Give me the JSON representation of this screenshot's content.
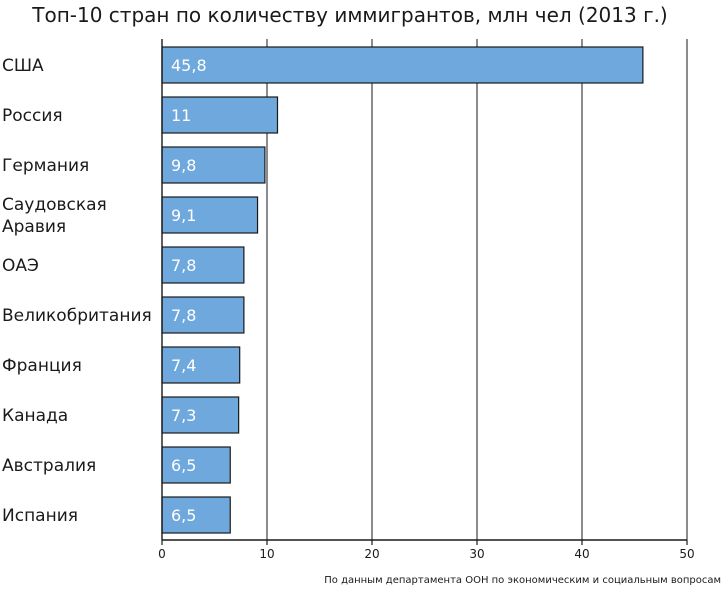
{
  "chart_data": {
    "type": "bar",
    "orientation": "horizontal",
    "title": "Топ-10 стран по количеству иммигрантов, млн чел (2013 г.)",
    "source_note": "По данным департамента ООН по экономическим и социальным вопросам",
    "categories": [
      [
        "США"
      ],
      [
        "Россия"
      ],
      [
        "Германия"
      ],
      [
        "Саудовская",
        "Аравия"
      ],
      [
        "ОАЭ"
      ],
      [
        "Великобритания"
      ],
      [
        "Франция"
      ],
      [
        "Канада"
      ],
      [
        "Австралия"
      ],
      [
        "Испания"
      ]
    ],
    "values": [
      45.8,
      11,
      9.8,
      9.1,
      7.8,
      7.8,
      7.4,
      7.3,
      6.5,
      6.5
    ],
    "value_labels": [
      "45,8",
      "11",
      "9,8",
      "9,1",
      "7,8",
      "7,8",
      "7,4",
      "7,3",
      "6,5",
      "6,5"
    ],
    "xlim": [
      0,
      50
    ],
    "x_ticks": [
      0,
      10,
      20,
      30,
      40,
      50
    ],
    "x_tick_labels": [
      "0",
      "10",
      "20",
      "30",
      "40",
      "50"
    ],
    "grid": "vertical",
    "legend": "none",
    "colors": {
      "bar_fill": "#6fa8dc",
      "bar_stroke": "#1a1a1a",
      "grid": "#1a1a1a",
      "value_text": "#ffffff"
    }
  }
}
